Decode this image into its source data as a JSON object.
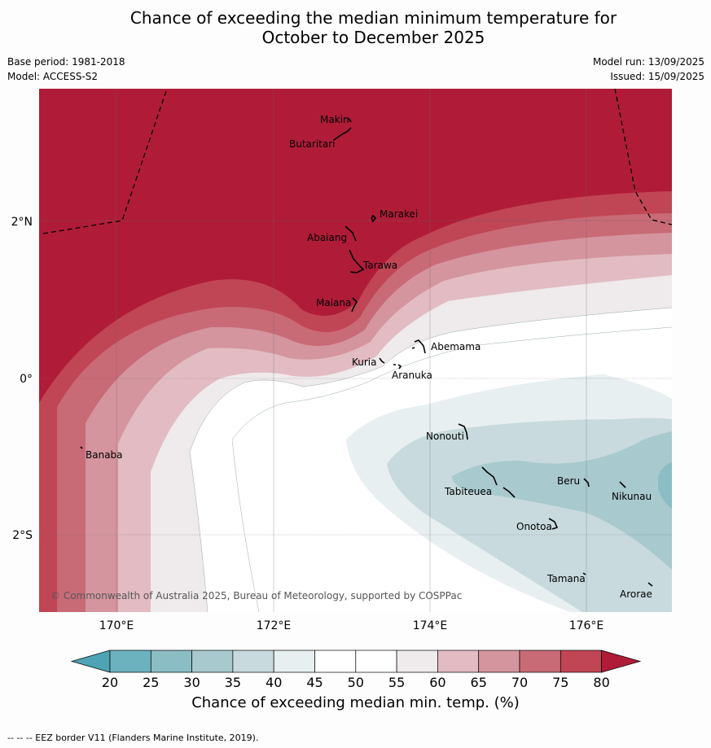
{
  "title_line1": "Chance of exceeding the median minimum temperature for",
  "title_line2": "October to December 2025",
  "base_period": "Base period: 1981-2018",
  "model": "Model: ACCESS-S2",
  "model_run": "Model run: 13/09/2025",
  "issued": "Issued: 15/09/2025",
  "map": {
    "lon_labels": [
      "170°E",
      "172°E",
      "174°E",
      "176°E"
    ],
    "lat_labels": [
      "2°N",
      "0°",
      "2°S"
    ],
    "places": [
      {
        "name": "Makin"
      },
      {
        "name": "Butaritari"
      },
      {
        "name": "Marakei"
      },
      {
        "name": "Abaiang"
      },
      {
        "name": "Tarawa"
      },
      {
        "name": "Maiana"
      },
      {
        "name": "Abemama"
      },
      {
        "name": "Kuria"
      },
      {
        "name": "Aranuka"
      },
      {
        "name": "Banaba"
      },
      {
        "name": "Nonouti"
      },
      {
        "name": "Beru"
      },
      {
        "name": "Tabiteuea"
      },
      {
        "name": "Nikunau"
      },
      {
        "name": "Onotoa"
      },
      {
        "name": "Tamana"
      },
      {
        "name": "Arorae"
      }
    ],
    "copyright": "© Commonwealth of Australia 2025, Bureau of Meteorology, supported by COSPPac"
  },
  "legend": {
    "title": "Chance of exceeding median min. temp. (%)",
    "ticks": [
      "20",
      "25",
      "30",
      "35",
      "40",
      "45",
      "50",
      "55",
      "60",
      "65",
      "70",
      "75",
      "80"
    ],
    "colors": {
      "below_20": "#4ea3b4",
      "20_25": "#6cb1be",
      "25_30": "#8bbdc5",
      "30_35": "#a8c9ce",
      "35_40": "#c8dadd",
      "40_45": "#e8eff1",
      "45_50": "#ffffff",
      "50_55": "#ffffff",
      "55_60": "#efeaec",
      "60_65": "#e2bcc2",
      "65_70": "#d4959f",
      "70_75": "#c96a77",
      "75_80": "#c04655",
      "above_80": "#b01c38"
    }
  },
  "footer": "--  --  -- EEZ border V11 (Flanders Marine Institute, 2019)."
}
